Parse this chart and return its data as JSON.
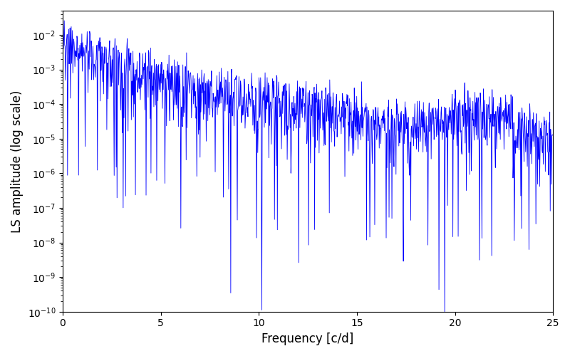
{
  "xlabel": "Frequency [c/d]",
  "ylabel": "LS amplitude (log scale)",
  "xlim": [
    0,
    25
  ],
  "ylim": [
    1e-10,
    0.05
  ],
  "line_color": "#0000ff",
  "figsize": [
    8.0,
    5.0
  ],
  "dpi": 100,
  "num_freqs": 1200,
  "seed": 7
}
